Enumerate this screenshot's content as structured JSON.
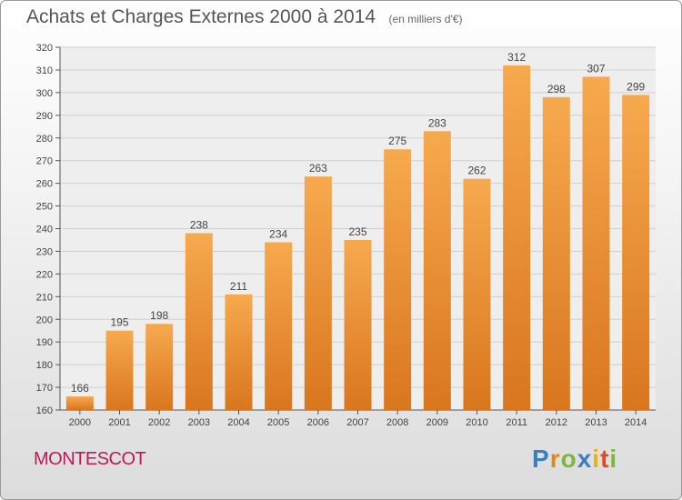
{
  "title": "Achats et Charges Externes 2000 à 2014",
  "unit_note": "(en milliers d'€)",
  "city": "MONTESCOT",
  "logo": {
    "text": "Proxiti",
    "letters": [
      {
        "ch": "P",
        "color": "#3a7fc4"
      },
      {
        "ch": "r",
        "color": "#e08a1e"
      },
      {
        "ch": "o",
        "color": "#7ab83a"
      },
      {
        "ch": "x",
        "color": "#3a7fc4"
      },
      {
        "ch": "i",
        "color": "#e0b31e"
      },
      {
        "ch": "t",
        "color": "#e04a1e"
      },
      {
        "ch": "i",
        "color": "#7ab83a"
      }
    ]
  },
  "colors": {
    "bar_top": "#f7a94e",
    "bar_bottom": "#d9761e",
    "grid": "#d0d0d0"
  },
  "chart_data": {
    "type": "bar",
    "categories": [
      "2000",
      "2001",
      "2002",
      "2003",
      "2004",
      "2005",
      "2006",
      "2007",
      "2008",
      "2009",
      "2010",
      "2011",
      "2012",
      "2013",
      "2014"
    ],
    "values": [
      166,
      195,
      198,
      238,
      211,
      234,
      263,
      235,
      275,
      283,
      262,
      312,
      298,
      307,
      299
    ],
    "ylim": [
      160,
      320
    ],
    "yticks": [
      160,
      170,
      180,
      190,
      200,
      210,
      220,
      230,
      240,
      250,
      260,
      270,
      280,
      290,
      300,
      310,
      320
    ],
    "grid": true
  }
}
